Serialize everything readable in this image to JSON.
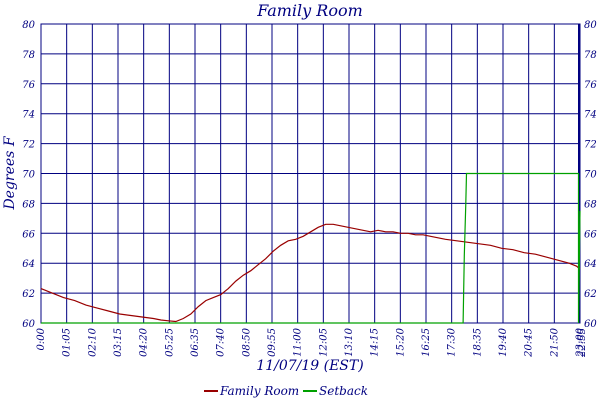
{
  "chart_data": {
    "type": "line",
    "title": "Family Room",
    "xlabel": "11/07/19 (EST)",
    "ylabel": "Degrees F",
    "ylim": [
      60,
      80
    ],
    "y_ticks": [
      "60",
      "62",
      "64",
      "66",
      "68",
      "70",
      "72",
      "74",
      "76",
      "78",
      "80"
    ],
    "x_ticks": [
      "0:00",
      "01:05",
      "02:10",
      "03:15",
      "04:20",
      "05:25",
      "06:35",
      "07:40",
      "08:50",
      "09:55",
      "11:00",
      "12:05",
      "13:10",
      "14:15",
      "15:20",
      "16:25",
      "17:30",
      "18:35",
      "19:40",
      "20:45",
      "21:50",
      "22:55",
      "23:00"
    ],
    "x_range_minutes": [
      0,
      1439
    ],
    "grid": true,
    "legend_position": "bottom-center",
    "colors": {
      "frame": "#000080",
      "grid": "#000080",
      "text": "#000080",
      "family_room": "#990000",
      "setback": "#00a000"
    },
    "series": [
      {
        "name": "Family Room",
        "x_minutes": [
          0,
          30,
          60,
          90,
          120,
          150,
          180,
          210,
          240,
          270,
          300,
          320,
          340,
          360,
          380,
          400,
          420,
          440,
          460,
          480,
          500,
          520,
          540,
          560,
          580,
          600,
          620,
          640,
          660,
          680,
          700,
          720,
          740,
          760,
          780,
          800,
          820,
          840,
          860,
          880,
          900,
          920,
          940,
          960,
          980,
          1000,
          1020,
          1040,
          1060,
          1080,
          1110,
          1140,
          1170,
          1200,
          1230,
          1260,
          1290,
          1320,
          1350,
          1380,
          1410,
          1430,
          1439
        ],
        "values": [
          62.3,
          62.0,
          61.7,
          61.5,
          61.2,
          61.0,
          60.8,
          60.6,
          60.5,
          60.4,
          60.3,
          60.2,
          60.15,
          60.1,
          60.3,
          60.6,
          61.1,
          61.5,
          61.7,
          61.9,
          62.3,
          62.8,
          63.2,
          63.5,
          63.9,
          64.3,
          64.8,
          65.2,
          65.5,
          65.6,
          65.8,
          66.1,
          66.4,
          66.6,
          66.6,
          66.5,
          66.4,
          66.3,
          66.2,
          66.1,
          66.2,
          66.1,
          66.1,
          66.0,
          66.0,
          65.9,
          65.9,
          65.8,
          65.7,
          65.6,
          65.5,
          65.4,
          65.3,
          65.2,
          65.0,
          64.9,
          64.7,
          64.6,
          64.4,
          64.2,
          64.0,
          63.8,
          63.6
        ]
      },
      {
        "name": "Setback",
        "x_minutes": [
          0,
          1127,
          1130,
          1134,
          1136,
          1435,
          1435,
          1439
        ],
        "values": [
          60,
          60,
          64.5,
          68.0,
          70,
          70,
          60,
          67.5
        ]
      }
    ]
  }
}
